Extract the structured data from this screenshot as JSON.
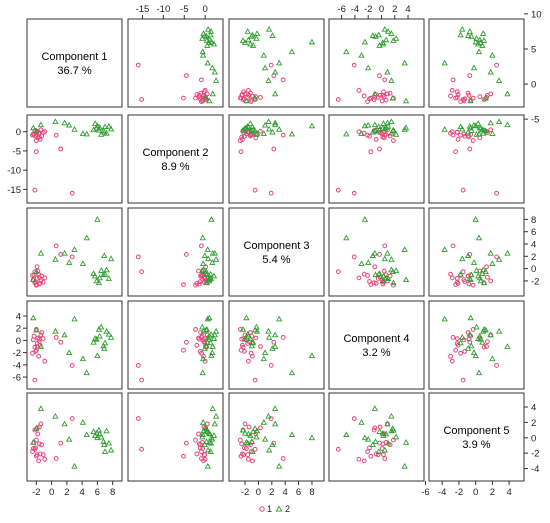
{
  "chart_data": {
    "type": "scatter",
    "title": "",
    "layout": "scatterplot-matrix",
    "components": [
      {
        "label": "Component 1",
        "variance": "36.7 %",
        "range": [
          -2.7,
          8.7
        ],
        "ticks": [
          -2,
          0,
          2,
          4,
          6,
          8
        ]
      },
      {
        "label": "Component 2",
        "variance": "8.9 %",
        "range": [
          -17.5,
          3.3
        ],
        "ticks": [
          -15,
          -10,
          -5,
          0
        ]
      },
      {
        "label": "Component 3",
        "variance": "5.4 %",
        "range": [
          -3.8,
          9.2
        ],
        "ticks": [
          -2,
          0,
          2,
          4,
          6,
          8
        ]
      },
      {
        "label": "Component 4",
        "variance": "3.2 %",
        "range": [
          -7.3,
          5.8
        ],
        "ticks": [
          -6,
          -4,
          -2,
          0,
          2,
          4
        ]
      },
      {
        "label": "Component 5",
        "variance": "3.9 %",
        "range": [
          -5.1,
          5.3
        ],
        "ticks": [
          -4,
          -2,
          0,
          2,
          4
        ]
      }
    ],
    "top_axis_ticks": {
      "1": [
        "-15",
        "-10",
        "-5",
        "0"
      ],
      "3": [
        "-6",
        "-4",
        "-2",
        "0",
        "2",
        "4"
      ]
    },
    "right_axis_ticks": {
      "0": [
        "10",
        "5",
        "0",
        "-5"
      ],
      "2": [
        "8",
        "6",
        "4",
        "2",
        "0",
        "-2"
      ],
      "4": [
        "4",
        "2",
        "0",
        "-2",
        "-4"
      ]
    },
    "left_axis_ticks": {
      "1": [
        "0",
        "-5",
        "-10",
        "-15"
      ],
      "3": [
        "4",
        "2",
        "0",
        "-2",
        "-4",
        "-6"
      ]
    },
    "bottom_axis_ticks": {
      "0": [
        "-2",
        "0",
        "2",
        "4",
        "6",
        "8"
      ],
      "2": [
        "-2",
        "0",
        "2",
        "4",
        "6",
        "8"
      ],
      "4": [
        "-6",
        "-4",
        "-2",
        "0",
        "2",
        "4"
      ]
    },
    "grid": false,
    "legend": {
      "placement": "bottom",
      "entries": [
        "1",
        "2"
      ]
    },
    "series": [
      {
        "name": "1",
        "marker": "circle",
        "color": "#e8457a",
        "points": [
          [
            -2.2,
            -15.2,
            -0.5,
            -6.5,
            -1.5
          ],
          [
            -2.0,
            -5.2,
            -2.6,
            -1.6,
            -2.4
          ],
          [
            -1.9,
            0.1,
            0.3,
            -1.0,
            1.3
          ],
          [
            -2.3,
            -0.7,
            -1.0,
            0.7,
            -0.6
          ],
          [
            -1.6,
            -0.3,
            -1.4,
            -0.2,
            1.4
          ],
          [
            -2.1,
            -1.2,
            -2.1,
            -1.8,
            -1.3
          ],
          [
            -1.8,
            -1.6,
            -0.4,
            0.4,
            0.5
          ],
          [
            -1.5,
            -2.0,
            -2.4,
            -0.8,
            -2.1
          ],
          [
            -2.4,
            -0.6,
            -1.8,
            0.1,
            -1.4
          ],
          [
            -1.7,
            -0.4,
            -0.9,
            -2.6,
            -3.0
          ],
          [
            -2.2,
            0.3,
            -2.3,
            -1.1,
            1.0
          ],
          [
            -1.3,
            -1.1,
            -1.2,
            1.3,
            -0.9
          ],
          [
            -2.0,
            -2.3,
            -2.7,
            1.8,
            -0.3
          ],
          [
            -1.9,
            -0.1,
            -1.6,
            -0.5,
            -2.2
          ],
          [
            -1.4,
            0.5,
            -2.0,
            0.9,
            1.8
          ],
          [
            -2.5,
            -0.9,
            -1.1,
            -2.1,
            -1.8
          ],
          [
            -1.6,
            -1.4,
            -2.5,
            0.2,
            -0.8
          ],
          [
            0.6,
            -0.9,
            3.7,
            0.5,
            -2.7
          ],
          [
            1.2,
            -4.5,
            2.3,
            -0.3,
            -0.7
          ],
          [
            2.7,
            -16.0,
            1.9,
            -4.1,
            2.5
          ],
          [
            -0.9,
            0.0,
            -1.5,
            -3.4,
            -2.8
          ],
          [
            -1.1,
            -0.2,
            -2.2,
            0.3,
            -2.2
          ]
        ]
      },
      {
        "name": "2",
        "marker": "triangle",
        "color": "#2e9e2e",
        "points": [
          [
            6.0,
            1.5,
            8.0,
            -2.5,
            0.0
          ],
          [
            5.5,
            0.5,
            -0.8,
            -0.3,
            0.8
          ],
          [
            6.3,
            1.1,
            -1.5,
            0.7,
            0.5
          ],
          [
            7.2,
            -0.4,
            -0.2,
            1.5,
            0.9
          ],
          [
            6.8,
            0.3,
            -1.0,
            -0.9,
            -0.5
          ],
          [
            5.9,
            0.9,
            -2.0,
            0.2,
            0.6
          ],
          [
            7.5,
            1.4,
            -1.6,
            1.0,
            -0.7
          ],
          [
            6.5,
            -0.7,
            -0.3,
            2.2,
            0.1
          ],
          [
            7.8,
            0.7,
            1.6,
            0.5,
            -1.6
          ],
          [
            5.7,
            2.1,
            -1.2,
            0.3,
            0.3
          ],
          [
            6.9,
            -0.1,
            2.1,
            -1.3,
            -0.9
          ],
          [
            6.2,
            0.4,
            -2.3,
            1.8,
            1.0
          ],
          [
            7.0,
            1.3,
            -0.9,
            -0.4,
            -1.8
          ],
          [
            4.6,
            -0.6,
            5.0,
            -5.3,
            0.4
          ],
          [
            3.0,
            0.6,
            3.1,
            3.5,
            -3.7
          ],
          [
            1.7,
            2.3,
            2.5,
            0.9,
            1.8
          ],
          [
            2.3,
            1.7,
            1.0,
            -2.0,
            -0.2
          ],
          [
            0.5,
            2.6,
            1.5,
            1.5,
            2.8
          ],
          [
            -2.0,
            0.2,
            -0.5,
            1.7,
            1.2
          ],
          [
            -1.4,
            1.8,
            2.5,
            -1.0,
            3.8
          ],
          [
            -2.4,
            1.0,
            -1.8,
            3.7,
            -0.6
          ],
          [
            4.1,
            -0.5,
            0.8,
            -3.0,
            2.0
          ]
        ]
      }
    ]
  }
}
